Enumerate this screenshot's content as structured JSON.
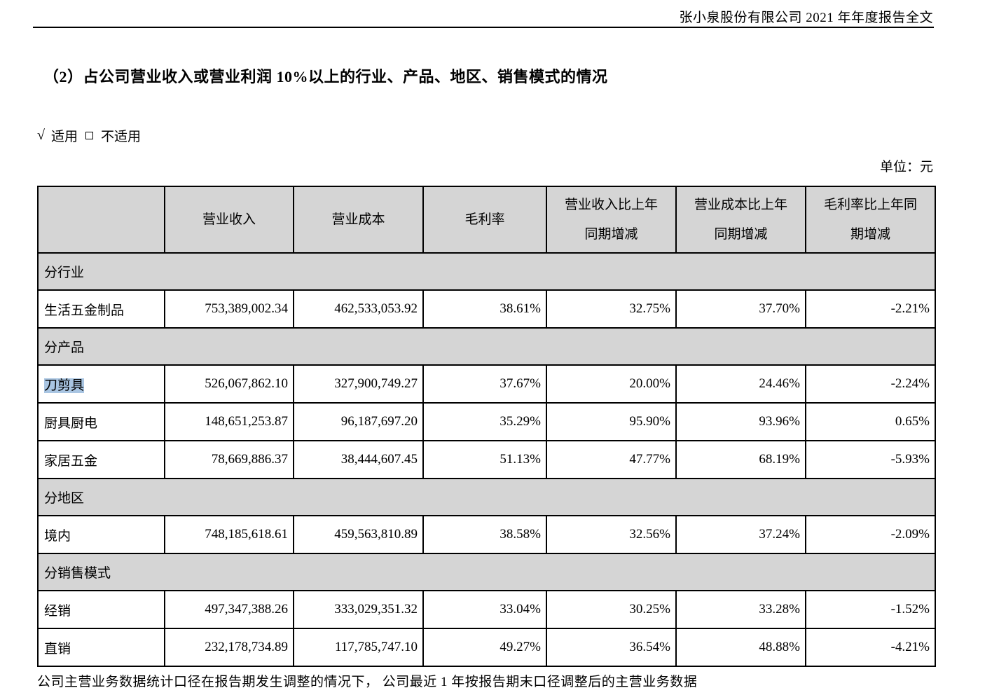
{
  "page_header": {
    "title": "张小泉股份有限公司 2021 年年度报告全文"
  },
  "section": {
    "heading": "（2）占公司营业收入或营业利润 10%以上的行业、产品、地区、销售模式的情况",
    "applicability": {
      "check_mark": "√",
      "applicable_label": "适用",
      "not_applicable_label": "不适用"
    },
    "unit_label": "单位：元"
  },
  "colors": {
    "section_bg": "#d5d5d5",
    "highlight": "#a9c5e2"
  },
  "table": {
    "columns": [
      "",
      "营业收入",
      "营业成本",
      "毛利率",
      "营业收入比上年\n同期增减",
      "营业成本比上年\n同期增减",
      "毛利率比上年同\n期增减"
    ],
    "rows": [
      {
        "type": "section",
        "label": "分行业"
      },
      {
        "type": "data",
        "label": "生活五金制品",
        "highlight": false,
        "values": [
          "753,389,002.34",
          "462,533,053.92",
          "38.61%",
          "32.75%",
          "37.70%",
          "-2.21%"
        ]
      },
      {
        "type": "section",
        "label": "分产品"
      },
      {
        "type": "data",
        "label": "刀剪具",
        "highlight": true,
        "values": [
          "526,067,862.10",
          "327,900,749.27",
          "37.67%",
          "20.00%",
          "24.46%",
          "-2.24%"
        ]
      },
      {
        "type": "data",
        "label": "厨具厨电",
        "highlight": false,
        "values": [
          "148,651,253.87",
          "96,187,697.20",
          "35.29%",
          "95.90%",
          "93.96%",
          "0.65%"
        ]
      },
      {
        "type": "data",
        "label": "家居五金",
        "highlight": false,
        "values": [
          "78,669,886.37",
          "38,444,607.45",
          "51.13%",
          "47.77%",
          "68.19%",
          "-5.93%"
        ]
      },
      {
        "type": "section",
        "label": "分地区"
      },
      {
        "type": "data",
        "label": "境内",
        "highlight": false,
        "values": [
          "748,185,618.61",
          "459,563,810.89",
          "38.58%",
          "32.56%",
          "37.24%",
          "-2.09%"
        ]
      },
      {
        "type": "section",
        "label": "分销售模式"
      },
      {
        "type": "data",
        "label": "经销",
        "highlight": false,
        "values": [
          "497,347,388.26",
          "333,029,351.32",
          "33.04%",
          "30.25%",
          "33.28%",
          "-1.52%"
        ]
      },
      {
        "type": "data",
        "label": "直销",
        "highlight": false,
        "values": [
          "232,178,734.89",
          "117,785,747.10",
          "49.27%",
          "36.54%",
          "48.88%",
          "-4.21%"
        ]
      }
    ]
  },
  "footer_note": "公司主营业务数据统计口径在报告期发生调整的情况下， 公司最近 1 年按报告期末口径调整后的主营业务数据"
}
